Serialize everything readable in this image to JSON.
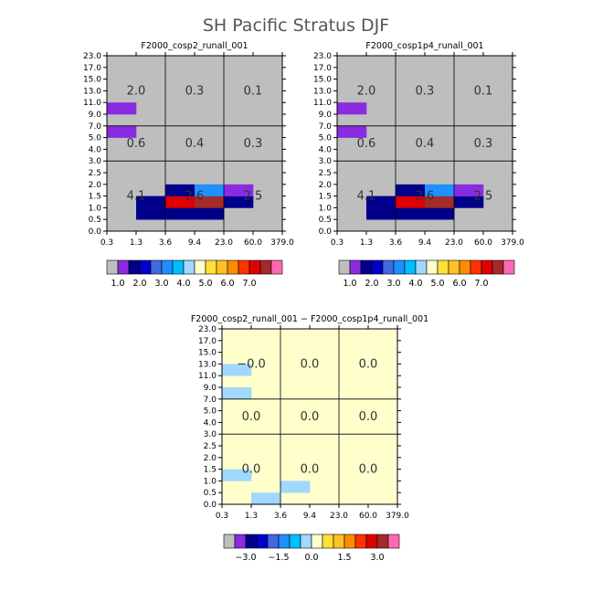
{
  "title": "SH Pacific Stratus DJF",
  "chart_data": [
    {
      "type": "heatmap",
      "title": "F2000_cosp2_runall_001",
      "x_ticks": [
        "0.3",
        "1.3",
        "3.6",
        "9.4",
        "23.0",
        "60.0",
        "379.0"
      ],
      "y_ticks": [
        "0.0",
        "0.5",
        "1.0",
        "1.5",
        "2.0",
        "2.5",
        "3.0",
        "4.0",
        "5.0",
        "7.0",
        "9.0",
        "11.0",
        "13.0",
        "15.0",
        "17.0",
        "23.0"
      ],
      "background_color": "#bebebe",
      "x_dividers": [
        2,
        4
      ],
      "y_dividers": [
        6,
        9
      ],
      "region_labels": [
        {
          "text": "2.0",
          "col": 1,
          "row": 1
        },
        {
          "text": "0.3",
          "col": 2,
          "row": 1
        },
        {
          "text": "0.1",
          "col": 3,
          "row": 1
        },
        {
          "text": "0.6",
          "col": 1,
          "row": 2
        },
        {
          "text": "0.4",
          "col": 2,
          "row": 2
        },
        {
          "text": "0.3",
          "col": 3,
          "row": 2
        },
        {
          "text": "4.1",
          "col": 1,
          "row": 3
        },
        {
          "text": "2.6",
          "col": 2,
          "row": 3
        },
        {
          "text": "2.5",
          "col": 3,
          "row": 3
        }
      ],
      "cells": [
        {
          "i": 0,
          "j": 10,
          "v": 0.5
        },
        {
          "i": 0,
          "j": 8,
          "v": 0.5
        },
        {
          "i": 1,
          "j": 1,
          "v": 1.2
        },
        {
          "i": 1,
          "j": 2,
          "v": 1.2
        },
        {
          "i": 2,
          "j": 1,
          "v": 1.0
        },
        {
          "i": 2,
          "j": 2,
          "v": 6.5
        },
        {
          "i": 2,
          "j": 3,
          "v": 1.2
        },
        {
          "i": 3,
          "j": 1,
          "v": 1.0
        },
        {
          "i": 3,
          "j": 2,
          "v": 7.2
        },
        {
          "i": 3,
          "j": 3,
          "v": 2.7
        },
        {
          "i": 4,
          "j": 2,
          "v": 1.2
        },
        {
          "i": 4,
          "j": 3,
          "v": 0.5
        }
      ],
      "colorbar": {
        "colors": [
          "#bebebe",
          "#8a2be2",
          "#00008b",
          "#0000cd",
          "#4169e1",
          "#1e90ff",
          "#00bfff",
          "#a0d8ff",
          "#ffffcc",
          "#ffe135",
          "#ffc125",
          "#ff8c00",
          "#ff3300",
          "#e00000",
          "#a52a2a",
          "#ff69b4"
        ],
        "levels": [
          0.5,
          1.0,
          1.5,
          2.0,
          2.5,
          3.0,
          3.5,
          4.0,
          4.5,
          5.0,
          5.5,
          6.0,
          6.5,
          7.0
        ],
        "labels": [
          "1.0",
          "2.0",
          "3.0",
          "4.0",
          "5.0",
          "6.0",
          "7.0"
        ],
        "label_boundaries": [
          1,
          3,
          5,
          7,
          9,
          11,
          13
        ]
      }
    },
    {
      "type": "heatmap",
      "title": "F2000_cosp1p4_runall_001",
      "x_ticks": [
        "0.3",
        "1.3",
        "3.6",
        "9.4",
        "23.0",
        "60.0",
        "379.0"
      ],
      "y_ticks": [
        "0.0",
        "0.5",
        "1.0",
        "1.5",
        "2.0",
        "2.5",
        "3.0",
        "4.0",
        "5.0",
        "7.0",
        "9.0",
        "11.0",
        "13.0",
        "15.0",
        "17.0",
        "23.0"
      ],
      "background_color": "#bebebe",
      "x_dividers": [
        2,
        4
      ],
      "y_dividers": [
        6,
        9
      ],
      "region_labels": [
        {
          "text": "2.0",
          "col": 1,
          "row": 1
        },
        {
          "text": "0.3",
          "col": 2,
          "row": 1
        },
        {
          "text": "0.1",
          "col": 3,
          "row": 1
        },
        {
          "text": "0.6",
          "col": 1,
          "row": 2
        },
        {
          "text": "0.4",
          "col": 2,
          "row": 2
        },
        {
          "text": "0.3",
          "col": 3,
          "row": 2
        },
        {
          "text": "4.1",
          "col": 1,
          "row": 3
        },
        {
          "text": "2.6",
          "col": 2,
          "row": 3
        },
        {
          "text": "2.5",
          "col": 3,
          "row": 3
        }
      ],
      "cells": [
        {
          "i": 0,
          "j": 10,
          "v": 0.5
        },
        {
          "i": 0,
          "j": 8,
          "v": 0.5
        },
        {
          "i": 1,
          "j": 1,
          "v": 1.2
        },
        {
          "i": 1,
          "j": 2,
          "v": 1.2
        },
        {
          "i": 2,
          "j": 1,
          "v": 1.0
        },
        {
          "i": 2,
          "j": 2,
          "v": 6.5
        },
        {
          "i": 2,
          "j": 3,
          "v": 1.2
        },
        {
          "i": 3,
          "j": 1,
          "v": 1.0
        },
        {
          "i": 3,
          "j": 2,
          "v": 7.2
        },
        {
          "i": 3,
          "j": 3,
          "v": 2.7
        },
        {
          "i": 4,
          "j": 2,
          "v": 1.2
        },
        {
          "i": 4,
          "j": 3,
          "v": 0.5
        }
      ],
      "colorbar": {
        "colors": [
          "#bebebe",
          "#8a2be2",
          "#00008b",
          "#0000cd",
          "#4169e1",
          "#1e90ff",
          "#00bfff",
          "#a0d8ff",
          "#ffffcc",
          "#ffe135",
          "#ffc125",
          "#ff8c00",
          "#ff3300",
          "#e00000",
          "#a52a2a",
          "#ff69b4"
        ],
        "levels": [
          0.5,
          1.0,
          1.5,
          2.0,
          2.5,
          3.0,
          3.5,
          4.0,
          4.5,
          5.0,
          5.5,
          6.0,
          6.5,
          7.0
        ],
        "labels": [
          "1.0",
          "2.0",
          "3.0",
          "4.0",
          "5.0",
          "6.0",
          "7.0"
        ],
        "label_boundaries": [
          1,
          3,
          5,
          7,
          9,
          11,
          13
        ]
      }
    },
    {
      "type": "heatmap",
      "title": "F2000_cosp2_runall_001 − F2000_cosp1p4_runall_001",
      "x_ticks": [
        "0.3",
        "1.3",
        "3.6",
        "9.4",
        "23.0",
        "60.0",
        "379.0"
      ],
      "y_ticks": [
        "0.0",
        "0.5",
        "1.0",
        "1.5",
        "2.0",
        "2.5",
        "3.0",
        "4.0",
        "5.0",
        "7.0",
        "9.0",
        "11.0",
        "13.0",
        "15.0",
        "17.0",
        "23.0"
      ],
      "background_color": "#ffffcc",
      "x_dividers": [
        2,
        4
      ],
      "y_dividers": [
        6,
        9
      ],
      "region_labels": [
        {
          "text": "−0.0",
          "col": 1,
          "row": 1
        },
        {
          "text": "0.0",
          "col": 2,
          "row": 1
        },
        {
          "text": "0.0",
          "col": 3,
          "row": 1
        },
        {
          "text": "0.0",
          "col": 1,
          "row": 2
        },
        {
          "text": "0.0",
          "col": 2,
          "row": 2
        },
        {
          "text": "0.0",
          "col": 3,
          "row": 2
        },
        {
          "text": "0.0",
          "col": 1,
          "row": 3
        },
        {
          "text": "0.0",
          "col": 2,
          "row": 3
        },
        {
          "text": "0.0",
          "col": 3,
          "row": 3
        }
      ],
      "cells": [
        {
          "i": 0,
          "j": 11,
          "v": -0.1
        },
        {
          "i": 0,
          "j": 9,
          "v": -0.1
        },
        {
          "i": 0,
          "j": 2,
          "v": -0.1
        },
        {
          "i": 1,
          "j": 0,
          "v": -0.1
        },
        {
          "i": 2,
          "j": 1,
          "v": -0.1
        }
      ],
      "colorbar": {
        "colors": [
          "#bebebe",
          "#8a2be2",
          "#00008b",
          "#0000cd",
          "#4169e1",
          "#1e90ff",
          "#00bfff",
          "#a0d8ff",
          "#ffffcc",
          "#ffe135",
          "#ffc125",
          "#ff8c00",
          "#ff3300",
          "#e00000",
          "#a52a2a",
          "#ff69b4"
        ],
        "levels": [
          -3.5,
          -3.0,
          -2.5,
          -2.0,
          -1.5,
          -1.0,
          -0.5,
          0.0,
          0.5,
          1.0,
          1.5,
          2.0,
          2.5,
          3.0
        ],
        "labels": [
          "−3.0",
          "−1.5",
          "0.0",
          "1.5",
          "3.0"
        ],
        "label_boundaries": [
          2,
          5,
          8,
          11,
          14
        ]
      }
    }
  ]
}
